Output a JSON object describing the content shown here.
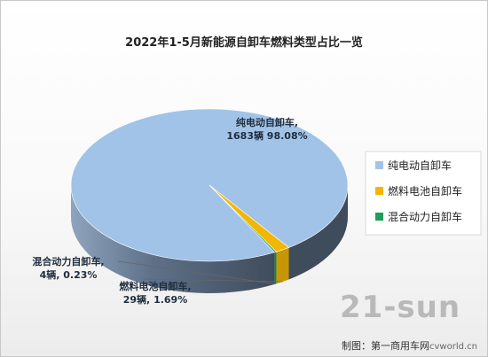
{
  "chart_data": {
    "type": "pie",
    "title": "2022年1-5月新能源自卸车燃料类型占比一览",
    "slices": [
      {
        "name": "纯电动自卸车",
        "value": 1683,
        "percent": "98.08%",
        "label_line1": "纯电动自卸车,",
        "label_line2": "1683辆 98.08%",
        "color": "#a2c3e8"
      },
      {
        "name": "燃料电池自卸车",
        "value": 29,
        "percent": "1.69%",
        "label_line1": "燃料电池自卸车,",
        "label_line2": "29辆, 1.69%",
        "color": "#f2b705"
      },
      {
        "name": "混合动力自卸车",
        "value": 4,
        "percent": "0.23%",
        "label_line1": "混合动力自卸车,",
        "label_line2": "4辆, 0.23%",
        "color": "#1e9e57"
      }
    ],
    "legend_position": "right",
    "style": "3d"
  },
  "watermark": "21-sun",
  "credit": {
    "text": "制图：第一商用车网",
    "site": "cvworld.cn"
  }
}
